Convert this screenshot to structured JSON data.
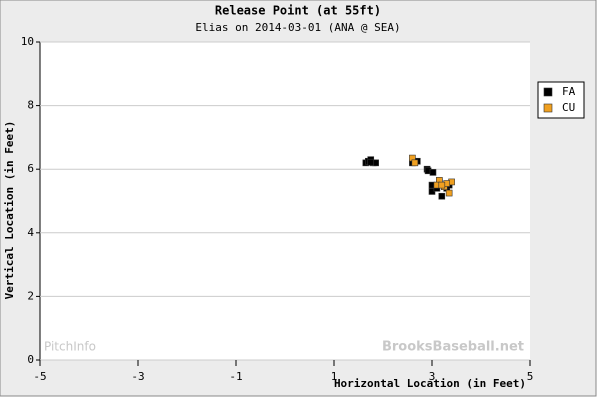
{
  "chart_data": {
    "type": "scatter",
    "title": "Release Point (at 55ft)",
    "subtitle": "Elias on 2014-03-01 (ANA @ SEA)",
    "x_label": "Horizontal Location (in Feet)",
    "y_label": "Vertical Location (in Feet)",
    "annotations": [
      "PitchInfo",
      "BrooksBaseball.net"
    ],
    "xlim": [
      -5,
      5
    ],
    "xticks": [
      -5,
      -3,
      -1,
      1,
      3,
      5
    ],
    "ylim": [
      0,
      10
    ],
    "yticks": [
      0,
      2,
      4,
      6,
      8,
      10
    ],
    "grid": true,
    "legend": "right",
    "series": [
      {
        "name": "FA",
        "color": "#000000",
        "x": [
          1.65,
          1.7,
          1.75,
          1.8,
          1.85,
          1.75,
          2.6,
          2.7,
          2.9,
          2.92,
          3.02,
          3.0,
          3.0,
          3.1,
          3.2,
          3.3,
          3.35,
          3.15
        ],
        "values": [
          6.2,
          6.25,
          6.3,
          6.2,
          6.2,
          6.22,
          6.2,
          6.25,
          6.0,
          5.95,
          5.9,
          5.5,
          5.3,
          5.4,
          5.15,
          5.4,
          5.5,
          5.6
        ]
      },
      {
        "name": "CU",
        "color": "#f0a020",
        "x": [
          2.6,
          2.65,
          3.15,
          3.1,
          3.25,
          3.35,
          3.4,
          3.3,
          3.2
        ],
        "values": [
          6.35,
          6.2,
          5.65,
          5.5,
          5.45,
          5.25,
          5.6,
          5.55,
          5.5
        ]
      }
    ]
  }
}
